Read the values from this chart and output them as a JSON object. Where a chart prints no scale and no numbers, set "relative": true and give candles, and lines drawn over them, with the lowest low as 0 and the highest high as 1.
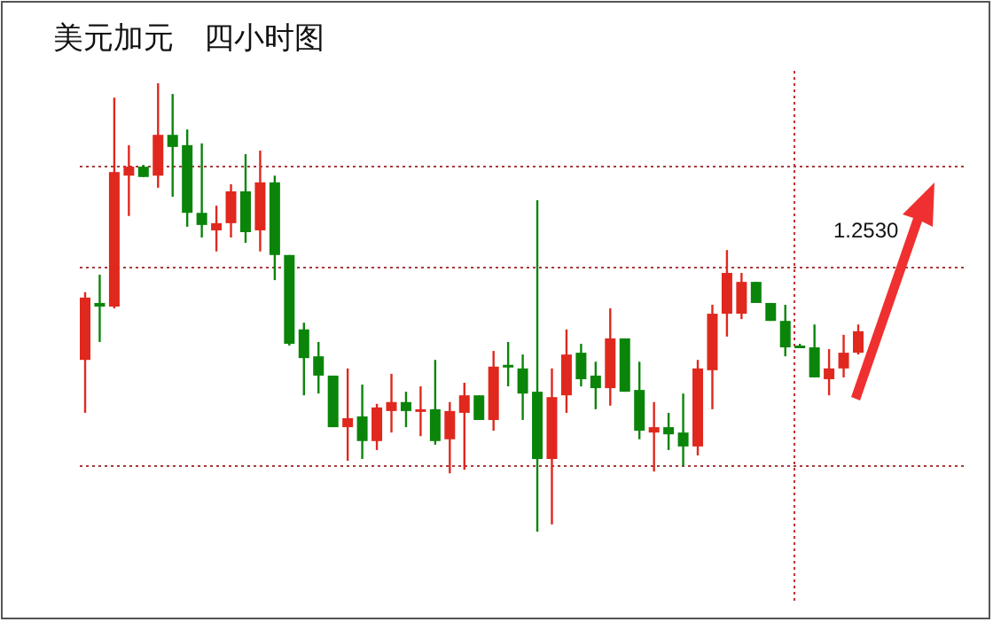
{
  "chart_data": {
    "type": "candlestick",
    "title": "美元加元　四小时图",
    "relative": true,
    "categories": [
      null,
      null,
      null,
      null,
      null,
      null,
      null,
      null,
      null,
      null,
      null,
      null,
      null,
      null,
      null,
      null,
      null,
      null,
      null,
      null,
      null,
      null,
      null,
      null,
      null,
      null,
      null,
      null,
      null,
      null,
      null,
      null,
      null,
      null,
      null,
      null,
      null,
      null,
      null,
      null,
      null,
      null,
      null,
      null,
      null,
      null,
      null,
      null,
      null,
      null,
      null,
      null,
      null,
      null
    ],
    "ohlc": [
      [
        0.383,
        0.534,
        0.265,
        0.522
      ],
      [
        0.51,
        0.573,
        0.423,
        0.502
      ],
      [
        0.502,
        0.968,
        0.498,
        0.802
      ],
      [
        0.794,
        0.862,
        0.704,
        0.814
      ],
      [
        0.814,
        0.818,
        0.791,
        0.791
      ],
      [
        0.794,
        1,
        0.767,
        0.885
      ],
      [
        0.885,
        0.976,
        0.747,
        0.858
      ],
      [
        0.862,
        0.897,
        0.68,
        0.711
      ],
      [
        0.711,
        0.866,
        0.656,
        0.684
      ],
      [
        0.672,
        0.727,
        0.625,
        0.688
      ],
      [
        0.688,
        0.775,
        0.656,
        0.759
      ],
      [
        0.759,
        0.842,
        0.644,
        0.668
      ],
      [
        0.672,
        0.85,
        0.625,
        0.779
      ],
      [
        0.779,
        0.794,
        0.561,
        0.617
      ],
      [
        0.617,
        0.617,
        0.415,
        0.419
      ],
      [
        0.451,
        0.466,
        0.304,
        0.387
      ],
      [
        0.391,
        0.423,
        0.308,
        0.348
      ],
      [
        0.348,
        0.348,
        0.233,
        0.233
      ],
      [
        0.233,
        0.364,
        0.158,
        0.253
      ],
      [
        0.257,
        0.328,
        0.162,
        0.202
      ],
      [
        0.202,
        0.285,
        0.182,
        0.277
      ],
      [
        0.269,
        0.352,
        0.221,
        0.289
      ],
      [
        0.289,
        0.312,
        0.233,
        0.269
      ],
      [
        0.269,
        0.324,
        0.213,
        0.273
      ],
      [
        0.273,
        0.383,
        0.194,
        0.202
      ],
      [
        0.206,
        0.289,
        0.13,
        0.269
      ],
      [
        0.265,
        0.332,
        0.138,
        0.304
      ],
      [
        0.304,
        0.304,
        0.249,
        0.249
      ],
      [
        0.249,
        0.403,
        0.225,
        0.368
      ],
      [
        0.372,
        0.423,
        0.324,
        0.368
      ],
      [
        0.364,
        0.395,
        0.249,
        0.308
      ],
      [
        0.312,
        0.739,
        0,
        0.162
      ],
      [
        0.162,
        0.364,
        0.016,
        0.3
      ],
      [
        0.304,
        0.451,
        0.265,
        0.395
      ],
      [
        0.399,
        0.419,
        0.324,
        0.34
      ],
      [
        0.348,
        0.379,
        0.273,
        0.32
      ],
      [
        0.32,
        0.498,
        0.281,
        0.431
      ],
      [
        0.431,
        0.431,
        0.312,
        0.312
      ],
      [
        0.316,
        0.379,
        0.206,
        0.225
      ],
      [
        0.221,
        0.289,
        0.134,
        0.233
      ],
      [
        0.233,
        0.265,
        0.182,
        0.217
      ],
      [
        0.221,
        0.308,
        0.146,
        0.19
      ],
      [
        0.19,
        0.383,
        0.17,
        0.364
      ],
      [
        0.36,
        0.506,
        0.273,
        0.486
      ],
      [
        0.486,
        0.628,
        0.435,
        0.577
      ],
      [
        0.486,
        0.577,
        0.474,
        0.557
      ],
      [
        0.557,
        0.557,
        0.51,
        0.51
      ],
      [
        0.51,
        0.51,
        0.47,
        0.47
      ],
      [
        0.47,
        0.506,
        0.391,
        0.411
      ],
      [
        0.415,
        0.419,
        0.411,
        0.411
      ],
      [
        0.411,
        0.462,
        0.344,
        0.344
      ],
      [
        0.34,
        0.407,
        0.304,
        0.364
      ],
      [
        0.364,
        0.439,
        0.344,
        0.399
      ],
      [
        0.399,
        0.462,
        0.395,
        0.447
      ]
    ],
    "colors": [
      "#e0281e",
      "#0a850a",
      "#e0281e",
      "#e0281e",
      "#0a850a",
      "#e0281e",
      "#0a850a",
      "#0a850a",
      "#0a850a",
      "#e0281e",
      "#e0281e",
      "#0a850a",
      "#e0281e",
      "#0a850a",
      "#0a850a",
      "#0a850a",
      "#0a850a",
      "#0a850a",
      "#e0281e",
      "#0a850a",
      "#e0281e",
      "#e0281e",
      "#0a850a",
      "#e0281e",
      "#0a850a",
      "#e0281e",
      "#e0281e",
      "#0a850a",
      "#e0281e",
      "#0a850a",
      "#0a850a",
      "#0a850a",
      "#e0281e",
      "#e0281e",
      "#0a850a",
      "#0a850a",
      "#e0281e",
      "#0a850a",
      "#0a850a",
      "#e0281e",
      "#0a850a",
      "#0a850a",
      "#e0281e",
      "#e0281e",
      "#e0281e",
      "#e0281e",
      "#0a850a",
      "#0a850a",
      "#0a850a",
      "#0a850a",
      "#0a850a",
      "#e0281e",
      "#e0281e",
      "#e0281e"
    ],
    "ref_lines": [
      {
        "axis": "y",
        "value": 0.814,
        "color": "#a83a3a",
        "line_style": "dotted"
      },
      {
        "axis": "y",
        "value": 0.589,
        "color": "#a83a3a",
        "line_style": "dotted"
      },
      {
        "axis": "y",
        "value": 0.146,
        "color": "#a83a3a",
        "line_style": "dotted"
      }
    ],
    "annotations": [
      "1.2530"
    ]
  }
}
